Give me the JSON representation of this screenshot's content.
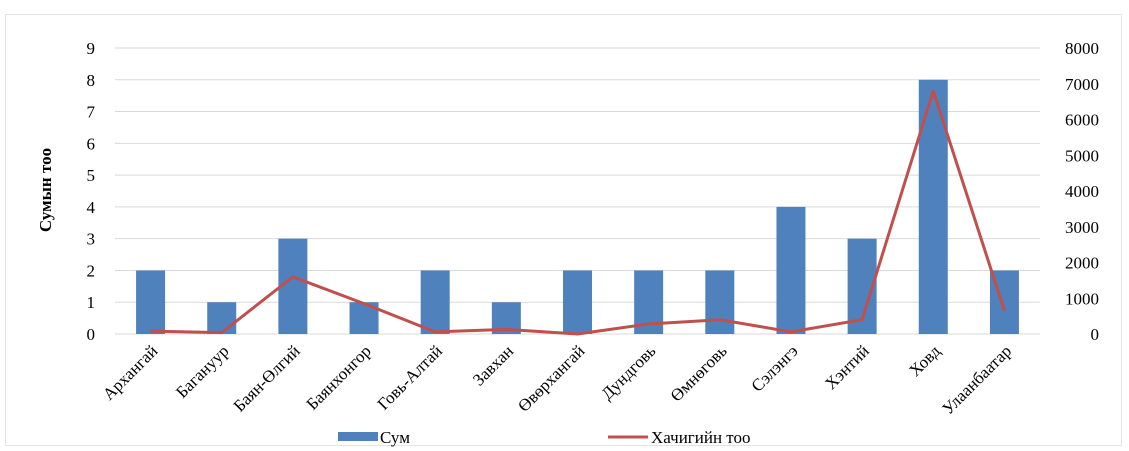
{
  "chart_data": {
    "type": "bar",
    "categories": [
      "Архангай",
      "Багануур",
      "Баян-Өлгий",
      "Баянхонгор",
      "Говь-Алтай",
      "Завхан",
      "Өвөрхангай",
      "Дундговь",
      "Өмнөговь",
      "Сэлэнгэ",
      "Хэнтий",
      "Ховд",
      "Улаанбаатар"
    ],
    "series": [
      {
        "name": "Сум",
        "type": "bar",
        "axis": "left",
        "color": "#4F81BD",
        "values": [
          2,
          1,
          3,
          1,
          2,
          1,
          2,
          2,
          2,
          4,
          3,
          8,
          2
        ]
      },
      {
        "name": "Хачигийн тоо",
        "type": "line",
        "axis": "right",
        "color": "#C0504D",
        "values": [
          80,
          40,
          1600,
          850,
          60,
          130,
          0,
          280,
          400,
          60,
          400,
          6800,
          650
        ]
      }
    ],
    "ylabel": "Сумын тоо",
    "xlabel": "",
    "ylim_left": [
      0,
      9
    ],
    "yticks_left": [
      "0",
      "1",
      "2",
      "3",
      "4",
      "5",
      "6",
      "7",
      "8",
      "9"
    ],
    "ylim_right": [
      0,
      8000
    ],
    "yticks_right": [
      "0",
      "1000",
      "2000",
      "3000",
      "4000",
      "5000",
      "6000",
      "7000",
      "8000"
    ],
    "grid": true,
    "legend_position": "bottom"
  }
}
